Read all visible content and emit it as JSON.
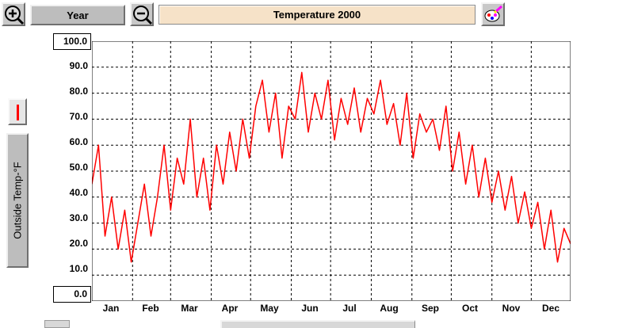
{
  "toolbar": {
    "zoom_in_icon": "zoom-in-icon",
    "zoom_out_icon": "zoom-out-icon",
    "paint_icon": "paint-palette-icon",
    "period_label": "Year",
    "chart_title": "Temperature 2000"
  },
  "legend": {
    "series_color": "#ff0000",
    "series_label": "Outside Temp-°F"
  },
  "chart_data": {
    "type": "line",
    "title": "Temperature 2000",
    "ylabel": "Outside Temp-°F",
    "xlabel": "",
    "ylim": [
      0,
      100
    ],
    "yticks": [
      "100.0",
      "90.0",
      "80.0",
      "70.0",
      "60.0",
      "50.0",
      "40.0",
      "30.0",
      "20.0",
      "10.0",
      "0.0"
    ],
    "xlim": [
      1,
      366
    ],
    "x_tick_labels": [
      "Jan",
      "Feb",
      "Mar",
      "Apr",
      "May",
      "Jun",
      "Jul",
      "Aug",
      "Sep",
      "Oct",
      "Nov",
      "Dec"
    ],
    "x_tick_days": [
      1,
      32,
      61,
      92,
      122,
      153,
      183,
      214,
      245,
      275,
      306,
      336
    ],
    "grid": true,
    "series": [
      {
        "name": "Outside Temp-°F",
        "color": "#ff0000",
        "x": [
          1,
          6,
          11,
          16,
          21,
          26,
          31,
          36,
          41,
          46,
          51,
          56,
          61,
          66,
          71,
          76,
          81,
          86,
          91,
          96,
          101,
          106,
          111,
          116,
          121,
          126,
          131,
          136,
          141,
          146,
          151,
          156,
          161,
          166,
          171,
          176,
          181,
          186,
          191,
          196,
          201,
          206,
          211,
          216,
          221,
          226,
          231,
          236,
          241,
          246,
          251,
          256,
          261,
          266,
          271,
          276,
          281,
          286,
          291,
          296,
          301,
          306,
          311,
          316,
          321,
          326,
          331,
          336,
          341,
          346,
          351,
          356,
          361,
          366
        ],
        "values": [
          45,
          60,
          25,
          40,
          20,
          35,
          15,
          30,
          45,
          25,
          40,
          60,
          35,
          55,
          45,
          70,
          40,
          55,
          35,
          60,
          45,
          65,
          50,
          70,
          55,
          75,
          85,
          65,
          80,
          55,
          75,
          70,
          88,
          65,
          80,
          70,
          85,
          62,
          78,
          68,
          82,
          65,
          78,
          72,
          85,
          68,
          76,
          60,
          80,
          55,
          72,
          65,
          70,
          58,
          75,
          50,
          65,
          45,
          60,
          40,
          55,
          38,
          50,
          35,
          48,
          30,
          42,
          28,
          38,
          20,
          35,
          15,
          28,
          22
        ]
      }
    ]
  }
}
